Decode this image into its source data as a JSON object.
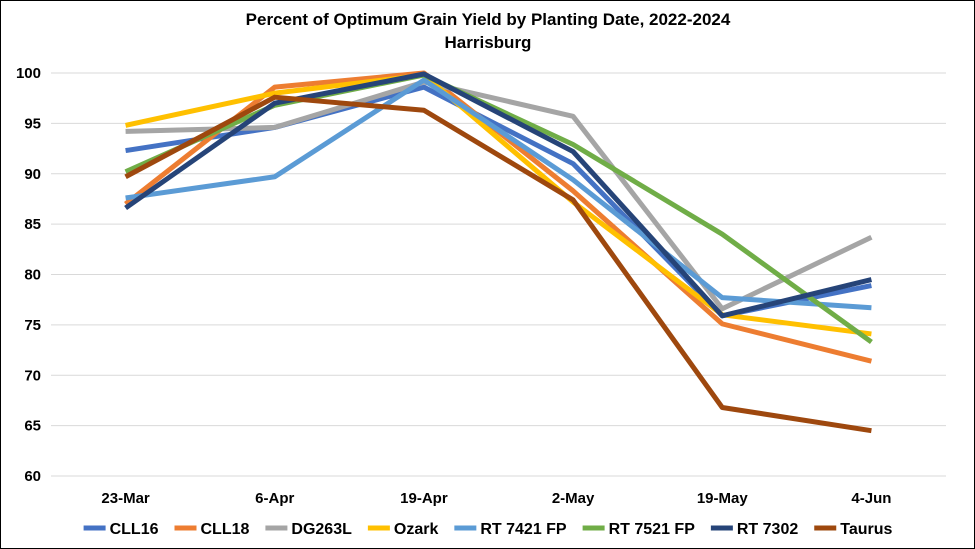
{
  "chart_data": {
    "type": "line",
    "title": "Percent of Optimum Grain Yield by Planting Date, 2022-2024",
    "subtitle": "Harrisburg",
    "xlabel": "",
    "ylabel": "",
    "categories": [
      "23-Mar",
      "6-Apr",
      "19-Apr",
      "2-May",
      "19-May",
      "4-Jun"
    ],
    "ylim": [
      60,
      100
    ],
    "yticks": [
      60,
      65,
      70,
      75,
      80,
      85,
      90,
      95,
      100
    ],
    "grid": true,
    "legend_position": "bottom",
    "series": [
      {
        "name": "CLL16",
        "color": "#4472C4",
        "values": [
          92.3,
          94.6,
          98.6,
          91.0,
          75.9,
          78.9
        ]
      },
      {
        "name": "CLL18",
        "color": "#ED7D31",
        "values": [
          87.0,
          98.6,
          100.0,
          88.3,
          75.1,
          71.4
        ]
      },
      {
        "name": "DG263L",
        "color": "#A5A5A5",
        "values": [
          94.2,
          94.6,
          99.1,
          95.7,
          76.6,
          83.7
        ]
      },
      {
        "name": "Ozark",
        "color": "#FFC000",
        "values": [
          94.8,
          98.0,
          99.8,
          87.2,
          76.0,
          74.1
        ]
      },
      {
        "name": "RT 7421 FP",
        "color": "#5B9BD5",
        "values": [
          87.6,
          89.7,
          99.3,
          89.4,
          77.7,
          76.7
        ]
      },
      {
        "name": "RT 7521 FP",
        "color": "#70AD47",
        "values": [
          90.2,
          96.8,
          99.8,
          92.9,
          84.0,
          73.3
        ]
      },
      {
        "name": "RT 7302",
        "color": "#264478",
        "values": [
          86.6,
          97.0,
          99.9,
          92.2,
          75.9,
          79.5
        ]
      },
      {
        "name": "Taurus",
        "color": "#9E480E",
        "values": [
          89.7,
          97.6,
          96.3,
          87.4,
          66.8,
          64.5
        ]
      }
    ]
  }
}
